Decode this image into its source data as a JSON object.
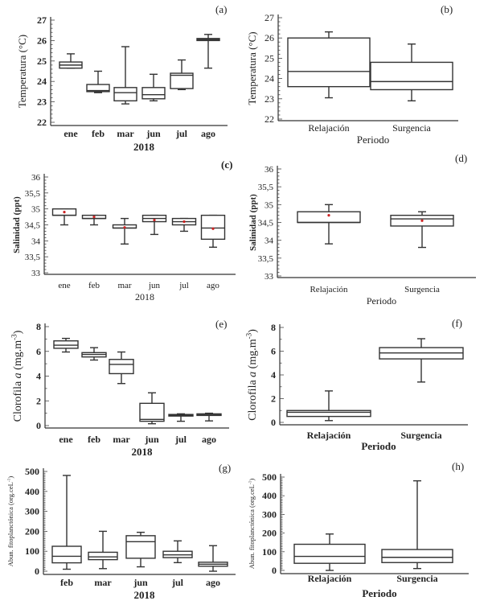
{
  "chart_data": [
    {
      "id": "a",
      "type": "box",
      "panel_label": "(a)",
      "ylabel": "Temperatura (°C)",
      "xlabel": "2018",
      "ylim": [
        22,
        27
      ],
      "yticks": [
        "22",
        "23",
        "24",
        "25",
        "26",
        "27"
      ],
      "categories": [
        "ene",
        "feb",
        "mar",
        "jun",
        "jul",
        "ago"
      ],
      "boxes": [
        {
          "min": 24.65,
          "q1": 24.65,
          "median": 24.8,
          "q3": 24.95,
          "max": 25.35
        },
        {
          "min": 23.45,
          "q1": 23.5,
          "median": 23.55,
          "q3": 23.85,
          "max": 24.5
        },
        {
          "min": 22.9,
          "q1": 23.05,
          "median": 23.45,
          "q3": 23.7,
          "max": 25.7
        },
        {
          "min": 23.05,
          "q1": 23.15,
          "median": 23.35,
          "q3": 23.7,
          "max": 24.35
        },
        {
          "min": 23.6,
          "q1": 23.65,
          "median": 24.3,
          "q3": 24.4,
          "max": 25.05
        },
        {
          "min": 24.65,
          "q1": 26.0,
          "median": 26.05,
          "q3": 26.1,
          "max": 26.3
        }
      ]
    },
    {
      "id": "b",
      "type": "box",
      "panel_label": "(b)",
      "ylabel": "Temperatura (°C)",
      "xlabel": "Periodo",
      "ylim": [
        22,
        27
      ],
      "yticks": [
        "22",
        "23",
        "24",
        "25",
        "26",
        "27"
      ],
      "categories": [
        "Relajación",
        "Surgencia"
      ],
      "boxes": [
        {
          "min": 23.05,
          "q1": 23.6,
          "median": 24.35,
          "q3": 26.0,
          "max": 26.3
        },
        {
          "min": 22.9,
          "q1": 23.45,
          "median": 23.85,
          "q3": 24.8,
          "max": 25.7
        }
      ]
    },
    {
      "id": "c",
      "type": "box",
      "panel_label": "(c)",
      "ylabel": "Salinidad (ppt)",
      "xlabel": "2018",
      "ylim": [
        33,
        36
      ],
      "yticks": [
        "33",
        "33,5",
        "34",
        "34,5",
        "35",
        "35,5",
        "36"
      ],
      "categories": [
        "ene",
        "feb",
        "mar",
        "jun",
        "jul",
        "ago"
      ],
      "boxes": [
        {
          "min": 34.5,
          "q1": 34.8,
          "median": 34.8,
          "q3": 35.0,
          "max": 35.0,
          "mean": 34.9
        },
        {
          "min": 34.5,
          "q1": 34.7,
          "median": 34.7,
          "q3": 34.8,
          "max": 34.8,
          "mean": 34.75
        },
        {
          "min": 33.9,
          "q1": 34.4,
          "median": 34.4,
          "q3": 34.5,
          "max": 34.7,
          "mean": 34.42
        },
        {
          "min": 34.2,
          "q1": 34.6,
          "median": 34.7,
          "q3": 34.8,
          "max": 34.8,
          "mean": 34.65
        },
        {
          "min": 34.3,
          "q1": 34.5,
          "median": 34.6,
          "q3": 34.7,
          "max": 34.7,
          "mean": 34.6
        },
        {
          "min": 33.8,
          "q1": 34.05,
          "median": 34.4,
          "q3": 34.8,
          "max": 34.8,
          "mean": 34.38
        }
      ]
    },
    {
      "id": "d",
      "type": "box",
      "panel_label": "(d)",
      "ylabel": "Salinidad (ppt)",
      "xlabel": "Periodo",
      "ylim": [
        33,
        36
      ],
      "yticks": [
        "33",
        "33,5",
        "34",
        "34,5",
        "35",
        "35,5",
        "36"
      ],
      "categories": [
        "Relajación",
        "Surgencia"
      ],
      "boxes": [
        {
          "min": 33.9,
          "q1": 34.5,
          "median": 34.5,
          "q3": 34.8,
          "max": 35.0,
          "mean": 34.7
        },
        {
          "min": 33.8,
          "q1": 34.4,
          "median": 34.6,
          "q3": 34.7,
          "max": 34.8,
          "mean": 34.55
        }
      ]
    },
    {
      "id": "e",
      "type": "box",
      "panel_label": "(e)",
      "ylabel": "Clorofila a (mg.m-3)",
      "ylabel_parts": [
        "Clorofila ",
        "a",
        " (mg.m",
        "-3",
        ")"
      ],
      "xlabel": "2018",
      "ylim": [
        0,
        8
      ],
      "yticks": [
        "0",
        "2",
        "4",
        "6",
        "8"
      ],
      "categories": [
        "ene",
        "feb",
        "mar",
        "jun",
        "jul",
        "ago"
      ],
      "boxes": [
        {
          "min": 5.95,
          "q1": 6.25,
          "median": 6.5,
          "q3": 6.85,
          "max": 7.05
        },
        {
          "min": 5.3,
          "q1": 5.55,
          "median": 5.75,
          "q3": 5.9,
          "max": 6.3
        },
        {
          "min": 3.4,
          "q1": 4.2,
          "median": 4.95,
          "q3": 5.35,
          "max": 5.95
        },
        {
          "min": 0.15,
          "q1": 0.35,
          "median": 0.5,
          "q3": 1.8,
          "max": 2.65
        },
        {
          "min": 0.35,
          "q1": 0.8,
          "median": 0.85,
          "q3": 0.9,
          "max": 0.95
        },
        {
          "min": 0.38,
          "q1": 0.85,
          "median": 0.9,
          "q3": 0.95,
          "max": 1.0
        }
      ]
    },
    {
      "id": "f",
      "type": "box",
      "panel_label": "(f)",
      "ylabel": "Clorofila a (mg.m-3)",
      "ylabel_parts": [
        "Clorofila ",
        "a",
        " (mg.m",
        "-3",
        ")"
      ],
      "xlabel": "Periodo",
      "ylim": [
        0,
        8
      ],
      "yticks": [
        "0",
        "2",
        "4",
        "6",
        "8"
      ],
      "categories": [
        "Relajación",
        "Surgencia"
      ],
      "boxes": [
        {
          "min": 0.15,
          "q1": 0.5,
          "median": 0.85,
          "q3": 1.0,
          "max": 2.65
        },
        {
          "min": 3.4,
          "q1": 5.35,
          "median": 5.85,
          "q3": 6.3,
          "max": 7.05
        }
      ]
    },
    {
      "id": "g",
      "type": "box",
      "panel_label": "(g)",
      "ylabel": "Abun. fitoplanctónica (org.ceL-1)",
      "ylabel_parts": [
        "Abun. fitoplanctónica (org.ceL",
        "-1",
        ")"
      ],
      "xlabel": "2018",
      "ylim": [
        0,
        500
      ],
      "yticks": [
        "0",
        "100",
        "200",
        "300",
        "400",
        "500"
      ],
      "categories": [
        "feb",
        "mar",
        "jun",
        "jul",
        "ago"
      ],
      "boxes": [
        {
          "min": 10,
          "q1": 42,
          "median": 75,
          "q3": 125,
          "max": 480
        },
        {
          "min": 13,
          "q1": 58,
          "median": 72,
          "q3": 95,
          "max": 200
        },
        {
          "min": 22,
          "q1": 65,
          "median": 148,
          "q3": 178,
          "max": 195
        },
        {
          "min": 43,
          "q1": 68,
          "median": 82,
          "q3": 100,
          "max": 152
        },
        {
          "min": 0,
          "q1": 25,
          "median": 35,
          "q3": 45,
          "max": 128
        }
      ]
    },
    {
      "id": "h",
      "type": "box",
      "panel_label": "(h)",
      "ylabel": "Abun. fitoplanctónica (org.ceL-1)",
      "ylabel_parts": [
        "Abun. fitoplanctónica (org.ceL",
        "-1",
        ")"
      ],
      "xlabel": "Periodo",
      "ylim": [
        0,
        500
      ],
      "yticks": [
        "0",
        "100",
        "200",
        "300",
        "400",
        "500"
      ],
      "categories": [
        "Relajación",
        "Surgencia"
      ],
      "boxes": [
        {
          "min": 0,
          "q1": 38,
          "median": 75,
          "q3": 140,
          "max": 195
        },
        {
          "min": 10,
          "q1": 42,
          "median": 70,
          "q3": 112,
          "max": 480
        }
      ]
    }
  ],
  "colors": {
    "axis": "#333333",
    "mean_marker": "#cc2222"
  }
}
